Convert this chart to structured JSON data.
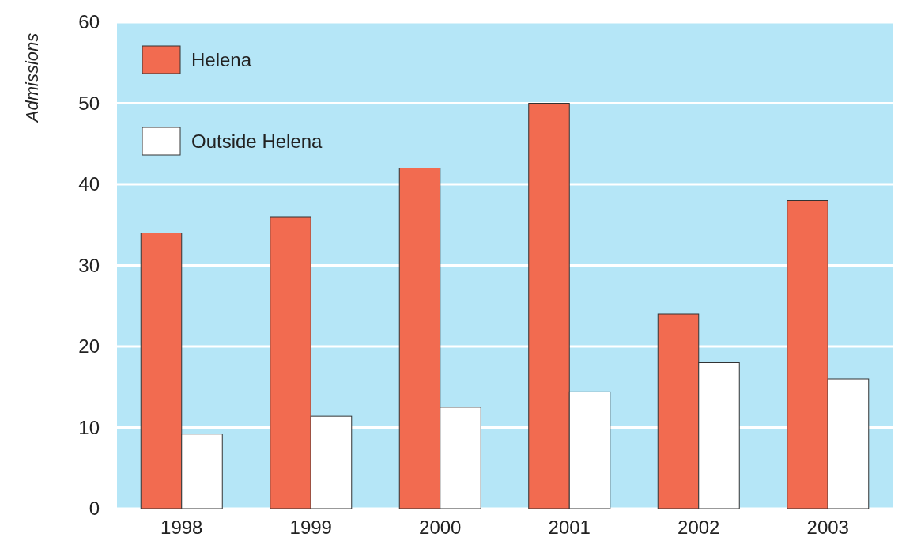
{
  "chart_data": {
    "type": "bar",
    "ylabel": "Admissions",
    "categories": [
      "1998",
      "1999",
      "2000",
      "2001",
      "2002",
      "2003"
    ],
    "series": [
      {
        "name": "Helena",
        "color": "#f26b50",
        "values": [
          34,
          36,
          42,
          50,
          24,
          38
        ]
      },
      {
        "name": "Outside Helena",
        "color": "#ffffff",
        "values": [
          9.2,
          11.4,
          12.5,
          14.4,
          18,
          16
        ]
      }
    ],
    "ylim": [
      0,
      60
    ],
    "yticks": [
      0,
      10,
      20,
      30,
      40,
      50,
      60
    ],
    "grid": "y",
    "legend": "top left"
  }
}
